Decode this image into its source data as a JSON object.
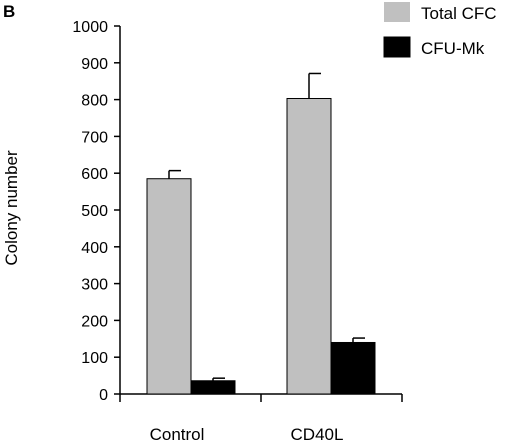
{
  "panel_label": "B",
  "colors": {
    "total_cfc": "#c0c0c0",
    "cfu_mk": "#000000",
    "axis": "#000000",
    "bar_outline": "#000000"
  },
  "chart_data": {
    "type": "bar",
    "title": "",
    "xlabel": "",
    "ylabel": "Colony number",
    "ylim": [
      0,
      1000
    ],
    "yticks": [
      0,
      100,
      200,
      300,
      400,
      500,
      600,
      700,
      800,
      900,
      1000
    ],
    "ytick_labels": [
      "0",
      "100",
      "200",
      "300",
      "400",
      "500",
      "600",
      "700",
      "800",
      "900",
      "1000"
    ],
    "categories": [
      "Control",
      "CD40L"
    ],
    "series": [
      {
        "name": "Total CFC",
        "color": "#c0c0c0",
        "values": [
          585,
          803
        ],
        "error": [
          22,
          68
        ]
      },
      {
        "name": "CFU-Mk",
        "color": "#000000",
        "values": [
          36,
          140
        ],
        "error": [
          7,
          12
        ]
      }
    ],
    "error_bars": "upper",
    "legend_position": "top-right",
    "grid": false
  }
}
